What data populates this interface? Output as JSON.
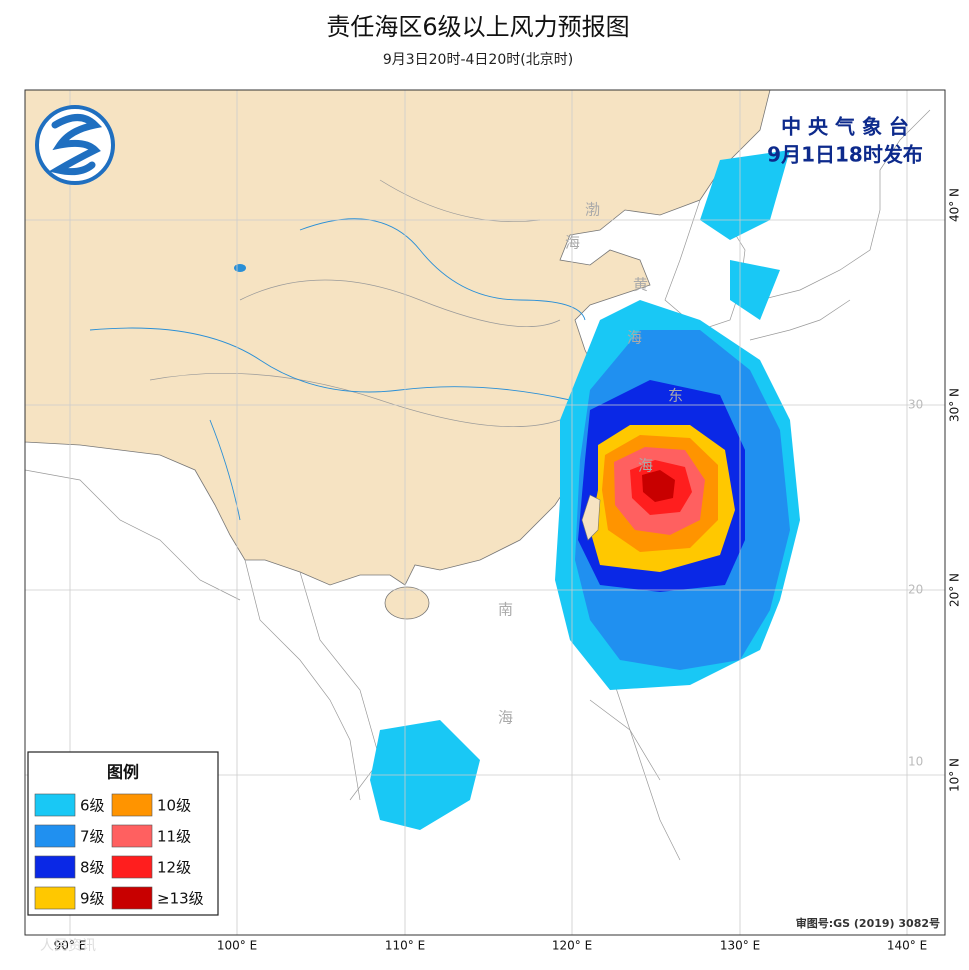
{
  "header": {
    "title": "责任海区6级以上风力预报图",
    "subtitle": "9月3日20时-4日20时(北京时)"
  },
  "agency": "中 央 气 象 台",
  "issued": "9月1日18时发布",
  "sea_labels": [
    "渤",
    "海",
    "黄",
    "海",
    "东",
    "海",
    "南",
    "海"
  ],
  "lon_labels": [
    "90° E",
    "100° E",
    "110° E",
    "120° E",
    "130° E",
    "140° E"
  ],
  "lat_labels": [
    "40° N",
    "30° N",
    "20° N",
    "10° N"
  ],
  "grid_labels": [
    "30",
    "20",
    "10"
  ],
  "legend": {
    "title": "图例",
    "items": [
      {
        "label": "6级",
        "color": "#19c8f5"
      },
      {
        "label": "10级",
        "color": "#ff9400"
      },
      {
        "label": "7级",
        "color": "#2090f0"
      },
      {
        "label": "11级",
        "color": "#ff6060"
      },
      {
        "label": "8级",
        "color": "#0a28e6"
      },
      {
        "label": "12级",
        "color": "#ff1e1e"
      },
      {
        "label": "9级",
        "color": "#ffc800"
      },
      {
        "label": "≥13级",
        "color": "#c80000"
      }
    ]
  },
  "approval": "审图号:GS (2019) 3082号",
  "watermark": "人民资讯"
}
